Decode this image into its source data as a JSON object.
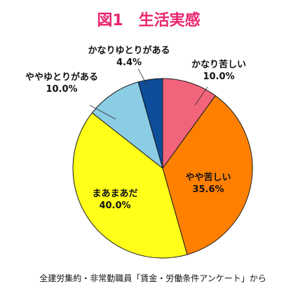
{
  "chart_data": {
    "type": "pie",
    "title": "図1　生活実感",
    "slices": [
      {
        "label": "かなり苦しい",
        "value": 10.0,
        "value_label": "10.0%",
        "color": "#f2647b"
      },
      {
        "label": "やや苦しい",
        "value": 35.6,
        "value_label": "35.6%",
        "color": "#ff8000"
      },
      {
        "label": "まあまあだ",
        "value": 40.0,
        "value_label": "40.0%",
        "color": "#ffff1a"
      },
      {
        "label": "ややゆとりがある",
        "value": 10.0,
        "value_label": "10.0%",
        "color": "#8ccde6"
      },
      {
        "label": "かなりゆとりがある",
        "value": 4.4,
        "value_label": "4.4%",
        "color": "#0d4d99"
      }
    ],
    "source": "全建労集約・非常勤職員「賃金・労働条件アンケート」から"
  }
}
